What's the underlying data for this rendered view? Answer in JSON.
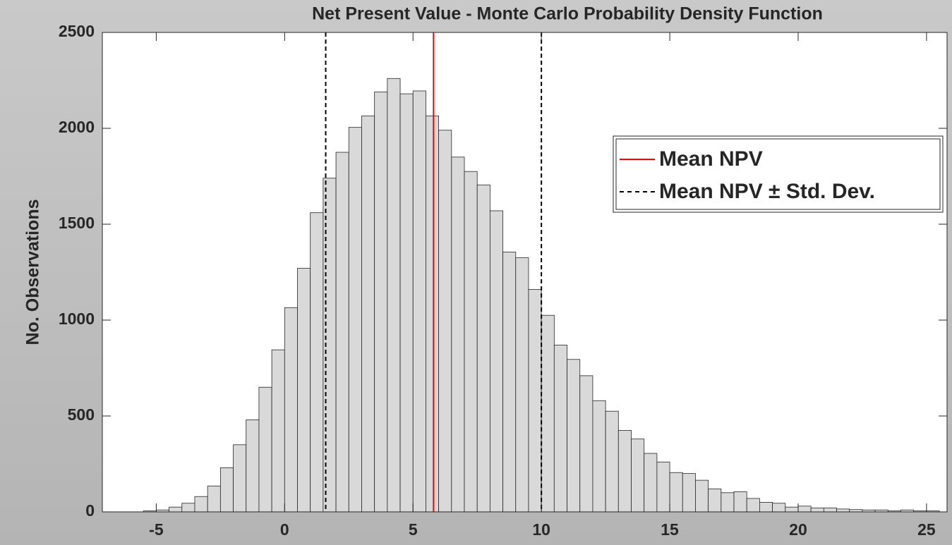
{
  "chart_data": {
    "type": "histogram",
    "title": "Net Present Value - Monte Carlo Probability Density Function",
    "ylabel": "No. Observations",
    "bins": [
      -5.5,
      -5,
      -4.5,
      -4,
      -3.5,
      -3,
      -2.5,
      -2,
      -1.5,
      -1,
      -0.5,
      0,
      0.5,
      1,
      1.5,
      2,
      2.5,
      3,
      3.5,
      4,
      4.5,
      5,
      5.5,
      6,
      6.5,
      7,
      7.5,
      8,
      8.5,
      9,
      9.5,
      10,
      10.5,
      11,
      11.5,
      12,
      12.5,
      13,
      13.5,
      14,
      14.5,
      15,
      15.5,
      16,
      16.5,
      17,
      17.5,
      18,
      18.5,
      19,
      19.5,
      20,
      20.5,
      21,
      21.5,
      22,
      22.5,
      23,
      23.5,
      24,
      24.5,
      25,
      25.5
    ],
    "counts": [
      5,
      10,
      25,
      45,
      80,
      135,
      230,
      350,
      480,
      650,
      845,
      1065,
      1270,
      1560,
      1740,
      1875,
      2005,
      2065,
      2190,
      2260,
      2180,
      2195,
      2065,
      1990,
      1850,
      1775,
      1705,
      1570,
      1355,
      1325,
      1160,
      1025,
      870,
      795,
      710,
      580,
      525,
      425,
      380,
      305,
      260,
      205,
      200,
      165,
      120,
      100,
      105,
      70,
      50,
      45,
      25,
      30,
      20,
      20,
      15,
      12,
      10,
      10,
      5,
      10,
      5,
      5
    ],
    "color": "#d9d9d9",
    "series": [
      {
        "name": "Mean NPV",
        "color": "#ff0000",
        "x": [
          5.8
        ],
        "dashed": false
      },
      {
        "name": "Mean NPV ± Std. Dev.",
        "color": "#000000",
        "x": [
          1.6,
          10.0
        ],
        "dashed": true
      }
    ],
    "xlim": [
      -7.1,
      25.8
    ],
    "xticks": [
      -5,
      0,
      5,
      10,
      15,
      20,
      25
    ],
    "ylim": [
      0,
      2500
    ],
    "yticks": [
      0,
      500,
      1000,
      1500,
      2000,
      2500
    ],
    "grid": false,
    "legend": "northeast"
  }
}
